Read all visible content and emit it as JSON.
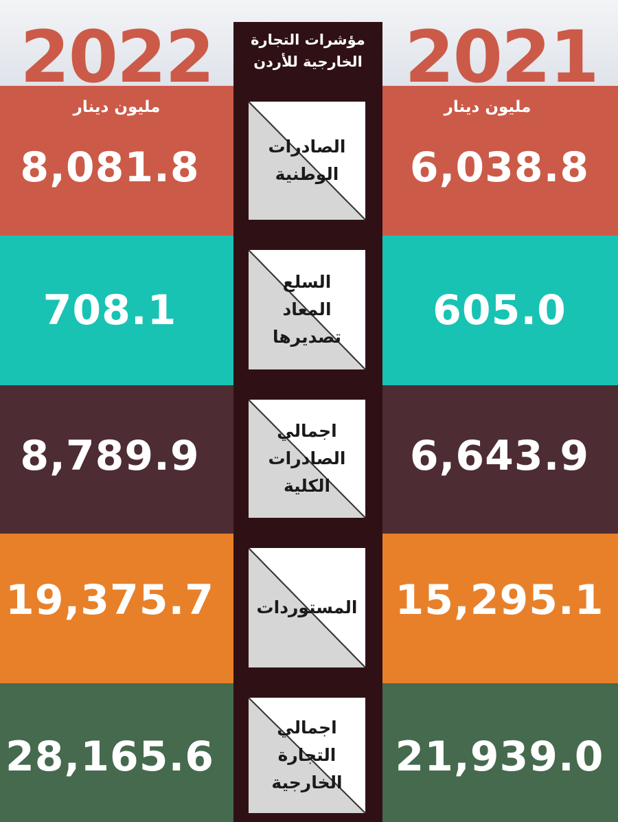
{
  "header": {
    "year_left": "2022",
    "year_right": "2021",
    "year_left_color": "#cc5a48",
    "year_right_color": "#cc5a48",
    "unit_left": "مليون دينار",
    "unit_right": "مليون دينار",
    "title": "مؤشرات التجارة\nالخارجية للأردن"
  },
  "rows": [
    {
      "label": "الصادرات\nالوطنية",
      "value_2022": "8,081.8",
      "value_2021": "6,038.8",
      "color": "#cc5a48"
    },
    {
      "label": "السلع\nالمعاد\nتصديرها",
      "value_2022": "708.1",
      "value_2021": "605.0",
      "color": "#18c3b4"
    },
    {
      "label": "اجمالي\nالصادرات\nالكلية",
      "value_2022": "8,789.9",
      "value_2021": "6,643.9",
      "color": "#4e2c33"
    },
    {
      "label": "المستوردات",
      "value_2022": "19,375.7",
      "value_2021": "15,295.1",
      "color": "#e8802a"
    },
    {
      "label": "اجمالي\nالتجارة\nالخارجية",
      "value_2022": "28,165.6",
      "value_2021": "21,939.0",
      "color": "#456a4e"
    }
  ],
  "colors": {
    "divider": "#2f1115",
    "text": "#ffffff"
  }
}
